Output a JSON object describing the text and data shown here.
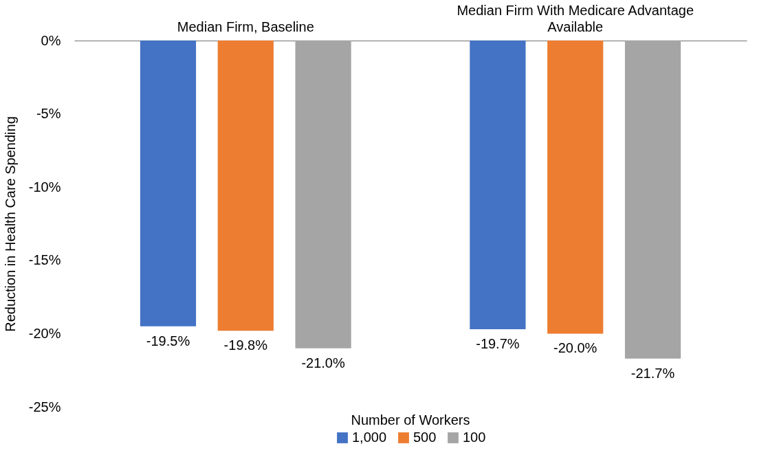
{
  "chart_data": {
    "type": "bar",
    "categories": [
      "Median Firm, Baseline",
      "Median Firm With Medicare Advantage Available"
    ],
    "ylabel": "Reduction in Health Care Spending",
    "legend_title": "Number of Workers",
    "legend": "bottom",
    "grid": false,
    "ylim": [
      -25,
      0
    ],
    "yticks": [
      {
        "value": 0,
        "label": "0%"
      },
      {
        "value": -5,
        "label": "-5%"
      },
      {
        "value": -10,
        "label": "-10%"
      },
      {
        "value": -15,
        "label": "-15%"
      },
      {
        "value": -20,
        "label": "-20%"
      },
      {
        "value": -25,
        "label": "-25%"
      }
    ],
    "series": [
      {
        "name": "1,000",
        "color": "#4472c4",
        "values": [
          -19.5,
          -19.7
        ],
        "value_labels": [
          "-19.5%",
          "-19.7%"
        ]
      },
      {
        "name": "500",
        "color": "#ed7d31",
        "values": [
          -19.8,
          -20.0
        ],
        "value_labels": [
          "-19.8%",
          "-20.0%"
        ]
      },
      {
        "name": "100",
        "color": "#a5a5a5",
        "values": [
          -21.0,
          -21.7
        ],
        "value_labels": [
          "-21.0%",
          "-21.7%"
        ]
      }
    ]
  }
}
